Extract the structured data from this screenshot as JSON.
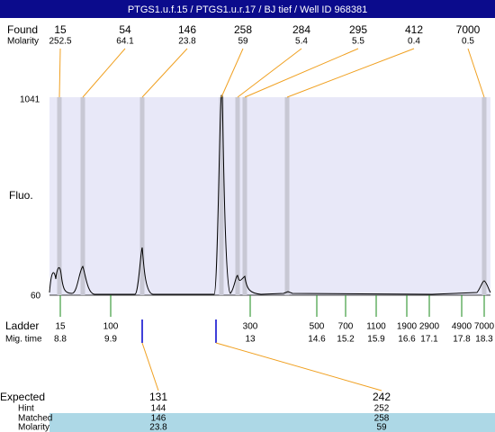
{
  "title": "PTGS1.u.f.15 / PTGS1.u.r.17 / BJ tief / Well ID 968381",
  "found": {
    "label": "Found",
    "sublabel": "Molarity",
    "peaks": [
      {
        "size": "15",
        "molarity": "252.5"
      },
      {
        "size": "54",
        "molarity": "64.1"
      },
      {
        "size": "146",
        "molarity": "23.8"
      },
      {
        "size": "258",
        "molarity": "59"
      },
      {
        "size": "284",
        "molarity": "5.4"
      },
      {
        "size": "295",
        "molarity": "5.5"
      },
      {
        "size": "412",
        "molarity": "0.4"
      },
      {
        "size": "7000",
        "molarity": "0.5"
      }
    ]
  },
  "axis": {
    "label": "Fluo.",
    "top": "1041",
    "bottom": "60"
  },
  "ladder": {
    "label": "Ladder",
    "sublabel": "Mig. time",
    "entries": [
      {
        "size": "15",
        "time": "8.8"
      },
      {
        "size": "100",
        "time": "9.9"
      },
      {
        "size": "300",
        "time": "13"
      },
      {
        "size": "500",
        "time": "14.6"
      },
      {
        "size": "700",
        "time": "15.2"
      },
      {
        "size": "1100",
        "time": "15.9"
      },
      {
        "size": "1900",
        "time": "16.6"
      },
      {
        "size": "2900",
        "time": "17.1"
      },
      {
        "size": "4900",
        "time": "17.8"
      },
      {
        "size": "7000",
        "time": "18.3"
      }
    ]
  },
  "expected": {
    "labels": [
      "Expected",
      "Hint",
      "Matched",
      "Molarity"
    ],
    "columns": [
      {
        "expected": "131",
        "hint": "144",
        "matched": "146",
        "molarity": "23.8"
      },
      {
        "expected": "242",
        "hint": "252",
        "matched": "258",
        "molarity": "59"
      }
    ]
  }
}
